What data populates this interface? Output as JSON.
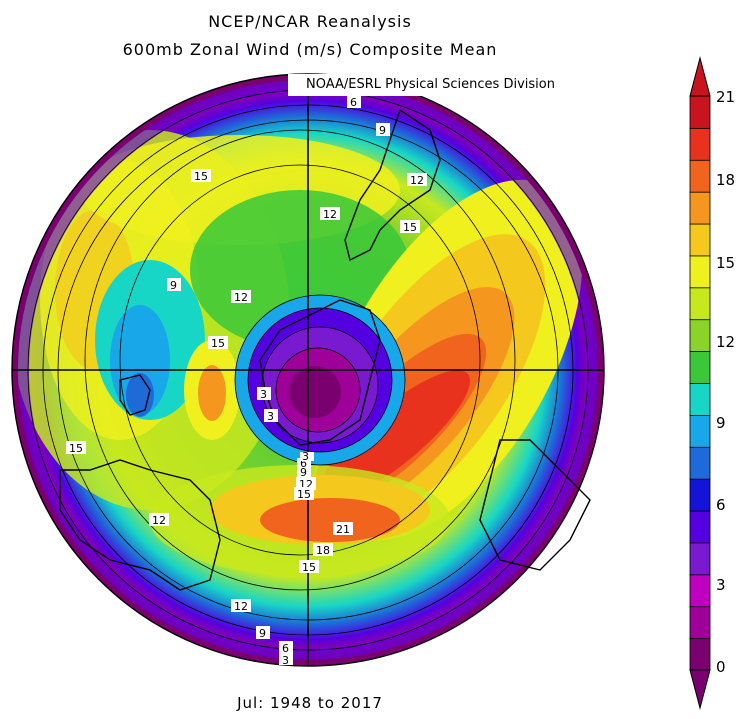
{
  "title_line1": "NCEP/NCAR Reanalysis",
  "title_line2": "600mb Zonal Wind (m/s) Composite Mean",
  "credit": "NOAA/ESRL Physical Sciences Division",
  "footer": "Jul: 1948 to 2017",
  "colorbar": {
    "ticks": [
      "21",
      "18",
      "15",
      "12",
      "9",
      "6",
      "3",
      "0"
    ],
    "colors": [
      "#7a0070",
      "#a0009a",
      "#c000c0",
      "#7a1ad0",
      "#5500e0",
      "#1414d8",
      "#1e6ad8",
      "#18a8ea",
      "#18d6c6",
      "#3ac83a",
      "#8ad42a",
      "#c8e81e",
      "#f0f01e",
      "#f5c81e",
      "#f5961e",
      "#f0641e",
      "#e8321e",
      "#c8141e"
    ]
  },
  "contour_labels": [
    "6",
    "9",
    "12",
    "15",
    "15",
    "12",
    "9",
    "12",
    "15",
    "3",
    "3",
    "15",
    "12",
    "12",
    "9",
    "6",
    "3",
    "15",
    "18",
    "21",
    "15",
    "12",
    "9",
    "6",
    "3"
  ]
}
